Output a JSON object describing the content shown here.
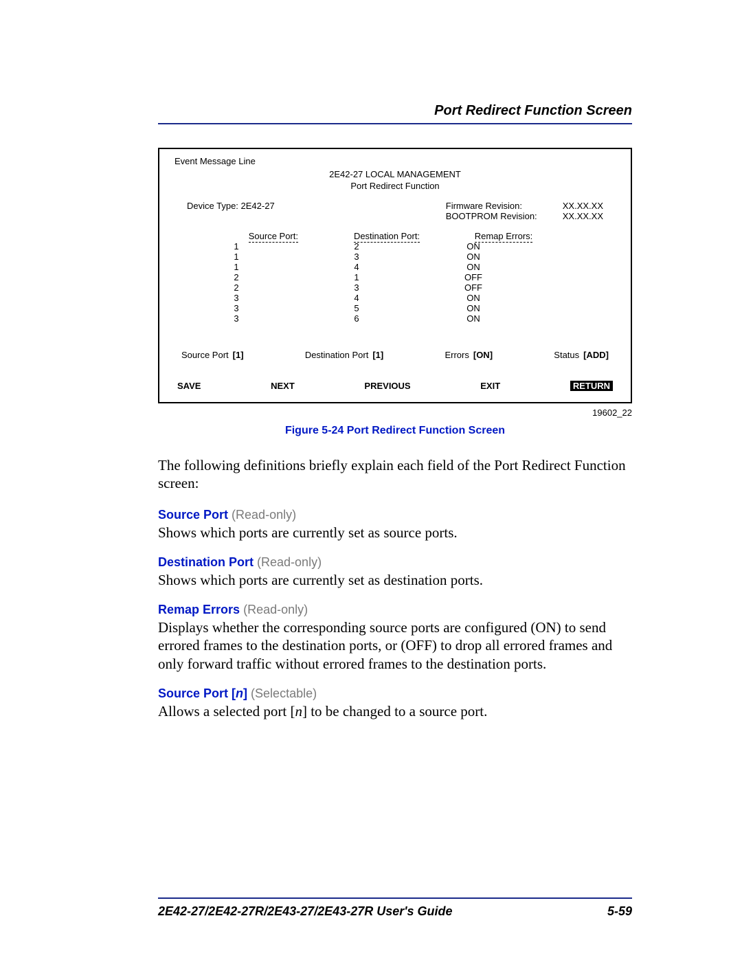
{
  "header": {
    "title": "Port Redirect Function Screen"
  },
  "screen": {
    "event_line": "Event Message Line",
    "title1": "2E42-27 LOCAL MANAGEMENT",
    "title2": "Port Redirect Function",
    "device_type_label": "Device Type: 2E42-27",
    "fw_label": "Firmware Revision:",
    "fw_value": "XX.XX.XX",
    "bp_label": "BOOTPROM Revision:",
    "bp_value": "XX.XX.XX",
    "columns": {
      "c1": "Source Port:",
      "c2": "Destination Port:",
      "c3": "Remap Errors:"
    },
    "rows": [
      {
        "s": "1",
        "d": "2",
        "r": "ON"
      },
      {
        "s": "1",
        "d": "3",
        "r": "ON"
      },
      {
        "s": "1",
        "d": "4",
        "r": "ON"
      },
      {
        "s": "2",
        "d": "1",
        "r": "OFF"
      },
      {
        "s": "2",
        "d": "3",
        "r": "OFF"
      },
      {
        "s": "3",
        "d": "4",
        "r": "ON"
      },
      {
        "s": "3",
        "d": "5",
        "r": "ON"
      },
      {
        "s": "3",
        "d": "6",
        "r": "ON"
      }
    ],
    "controls": {
      "src_label": "Source Port",
      "src_val": "[1]",
      "dst_label": "Destination Port",
      "dst_val": "[1]",
      "err_label": "Errors",
      "err_val": "[ON]",
      "status_label": "Status",
      "status_val": "[ADD]"
    },
    "menu": {
      "save": "SAVE",
      "next": "NEXT",
      "prev": "PREVIOUS",
      "exit": "EXIT",
      "ret": "RETURN"
    },
    "figure_id": "19602_22"
  },
  "caption": "Figure 5-24    Port Redirect Function Screen",
  "intro": "The following definitions briefly explain each field of the Port Redirect Function screen:",
  "fields": {
    "source_port": {
      "name": "Source Port",
      "qual": "(Read-only)",
      "text": "Shows which ports are currently set as source ports."
    },
    "dest_port": {
      "name": "Destination Port",
      "qual": "(Read-only)",
      "text": "Shows which ports are currently set as destination ports."
    },
    "remap_errors": {
      "name": "Remap Errors",
      "qual": "(Read-only)",
      "text": "Displays whether the corresponding source ports are configured (ON) to send errored frames to the destination ports, or (OFF) to drop all errored frames and only forward traffic without errored frames to the destination ports."
    },
    "source_port_n": {
      "name_a": "Source Port [",
      "name_i": "n",
      "name_b": "]",
      "qual": "(Selectable)",
      "text_a": "Allows a selected port [",
      "text_i": "n",
      "text_b": "] to be changed to a source port."
    }
  },
  "footer": {
    "guide": "2E42-27/2E42-27R/2E43-27/2E43-27R User's Guide",
    "page": "5-59"
  },
  "colors": {
    "link_blue": "#0018c4",
    "rule_blue": "#1a2a8a",
    "muted_gray": "#7a7a7a"
  }
}
